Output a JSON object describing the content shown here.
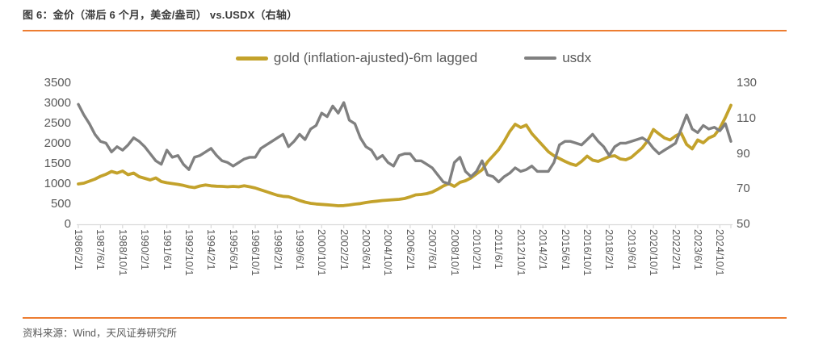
{
  "title": "图 6：金价（滞后 6 个月，美金/盎司） vs.USDX（右轴）",
  "source": "资料来源：Wind，天风证券研究所",
  "colors": {
    "accent_orange": "#ed7d31",
    "gold_line": "#c3a22b",
    "usdx_line": "#808080",
    "axis_text": "#595959",
    "axis_line": "#d9d9d9",
    "title_text": "#3a3a3a"
  },
  "chart_data": {
    "type": "line",
    "title": "",
    "legend_position": "top-center",
    "grid": false,
    "x_unit": "months since 1986/2",
    "x_range_months": [
      0,
      472
    ],
    "x_tick_step_months": 16,
    "x_tick_labels": [
      "1986/2/1",
      "1987/6/1",
      "1988/10/1",
      "1990/2/1",
      "1991/6/1",
      "1992/10/1",
      "1994/2/1",
      "1995/6/1",
      "1996/10/1",
      "1998/2/1",
      "1999/6/1",
      "2000/10/1",
      "2002/2/1",
      "2003/6/1",
      "2004/10/1",
      "2006/2/1",
      "2007/6/1",
      "2008/10/1",
      "2010/2/1",
      "2011/6/1",
      "2012/10/1",
      "2014/2/1",
      "2015/6/1",
      "2016/10/1",
      "2018/2/1",
      "2019/6/1",
      "2020/10/1",
      "2022/2/1",
      "2023/6/1",
      "2024/10/1"
    ],
    "left_axis": {
      "min": 0,
      "max": 3500,
      "ticks": [
        3500,
        3000,
        2500,
        2000,
        1500,
        1000,
        500,
        0
      ]
    },
    "right_axis": {
      "min": 50,
      "max": 130,
      "ticks": [
        130,
        110,
        90,
        70,
        50
      ]
    },
    "series": [
      {
        "name": "gold (inflation-ajusted)-6m lagged",
        "axis": "left",
        "color": "#c3a22b",
        "x_step_months": 4,
        "values": [
          1000,
          1020,
          1070,
          1120,
          1190,
          1240,
          1310,
          1270,
          1320,
          1230,
          1270,
          1180,
          1140,
          1100,
          1150,
          1060,
          1030,
          1010,
          990,
          965,
          930,
          910,
          950,
          975,
          955,
          945,
          940,
          930,
          940,
          930,
          955,
          930,
          900,
          855,
          810,
          765,
          720,
          695,
          685,
          640,
          590,
          550,
          520,
          505,
          495,
          485,
          472,
          460,
          465,
          480,
          500,
          515,
          540,
          560,
          575,
          590,
          600,
          610,
          620,
          640,
          680,
          730,
          740,
          760,
          800,
          870,
          950,
          1010,
          940,
          1040,
          1080,
          1150,
          1250,
          1350,
          1550,
          1700,
          1850,
          2060,
          2300,
          2480,
          2400,
          2460,
          2250,
          2100,
          1950,
          1800,
          1700,
          1630,
          1560,
          1500,
          1460,
          1560,
          1690,
          1590,
          1560,
          1620,
          1680,
          1700,
          1620,
          1600,
          1660,
          1780,
          1900,
          2080,
          2350,
          2240,
          2140,
          2090,
          2190,
          2260,
          1980,
          1870,
          2090,
          2020,
          2140,
          2200,
          2380,
          2650,
          2950
        ]
      },
      {
        "name": "usdx",
        "axis": "right",
        "color": "#808080",
        "x_step_months": 4,
        "values": [
          118,
          112,
          107,
          101,
          97,
          96,
          91,
          94,
          92,
          95,
          99,
          97,
          94,
          90,
          86,
          84,
          92,
          88,
          89,
          84,
          81,
          88,
          89,
          91,
          93,
          89,
          86,
          85,
          83,
          85,
          87,
          88,
          88,
          93,
          95,
          97,
          99,
          101,
          94,
          97,
          101,
          98,
          104,
          106,
          113,
          111,
          117,
          113,
          119,
          109,
          107,
          99,
          94,
          92,
          87,
          89,
          85,
          83,
          89,
          90,
          90,
          86,
          86,
          84,
          82,
          78,
          74,
          73,
          85,
          88,
          80,
          77,
          80,
          86,
          78,
          77,
          74,
          77,
          79,
          82,
          80,
          81,
          83,
          80,
          80,
          80,
          85,
          95,
          97,
          97,
          96,
          95,
          98,
          101,
          97,
          94,
          89,
          94,
          96,
          96,
          97,
          98,
          99,
          97,
          93,
          90,
          92,
          94,
          96,
          104,
          112,
          104,
          102,
          106,
          104,
          105,
          103,
          107,
          97
        ]
      }
    ]
  }
}
